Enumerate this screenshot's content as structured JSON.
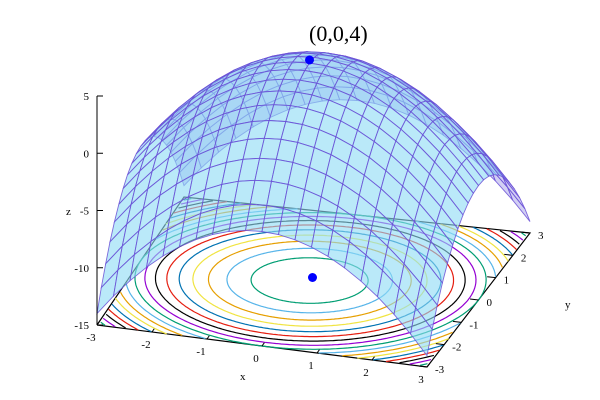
{
  "chart_data": {
    "type": "surface",
    "surface": {
      "formula": "4 - x^2 - y^2",
      "fill_top": "#8fdcf5",
      "fill_bottom": "#b6b2ee",
      "grid_color": "#6a4fd6"
    },
    "xlabel": "x",
    "ylabel": "y",
    "zlabel": "z",
    "xlim": [
      -3,
      3
    ],
    "ylim": [
      -3,
      3
    ],
    "zlim": [
      -15,
      5
    ],
    "xticks": [
      "-3",
      "-2",
      "-1",
      "0",
      "1",
      "2",
      "3"
    ],
    "yticks": [
      "-3",
      "-2",
      "-1",
      "0",
      "1",
      "2",
      "3"
    ],
    "zticks": [
      "5",
      "0",
      "-5",
      "-10",
      "-15"
    ],
    "contours": {
      "levels": [
        3,
        2,
        1,
        0,
        -1,
        -2,
        -3,
        -4,
        -5,
        -6,
        -7,
        -8,
        -9,
        -10,
        -11,
        -12,
        -13
      ],
      "colors": [
        "#9400d3",
        "#009e73",
        "#56b4e9",
        "#e69f00",
        "#f0e442",
        "#0072b2",
        "#e51e10",
        "#000000"
      ]
    },
    "points": [
      {
        "x": 0,
        "y": 0,
        "z": 4,
        "color": "#0000ff"
      }
    ],
    "annotation": "(0,0,4)"
  }
}
